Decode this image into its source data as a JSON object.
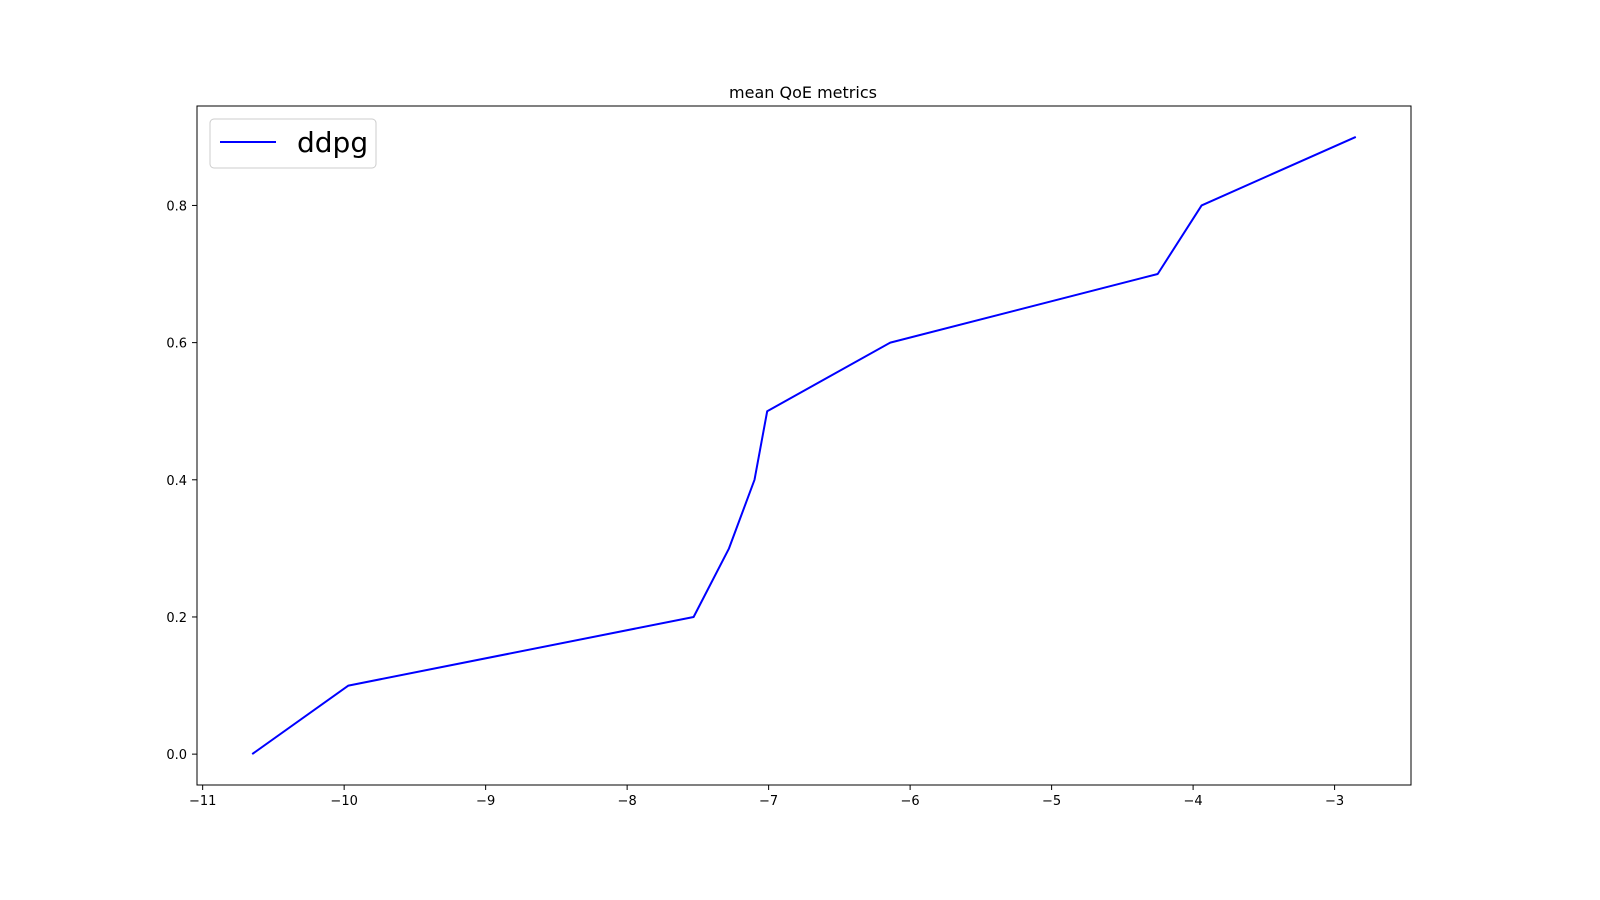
{
  "chart_data": {
    "type": "line",
    "title": "mean QoE metrics",
    "xlabel": "",
    "ylabel": "",
    "xlim": [
      -11.04,
      -2.46
    ],
    "ylim": [
      -0.045,
      0.945
    ],
    "x_ticks": [
      -11,
      -10,
      -9,
      -8,
      -7,
      -6,
      -5,
      -4,
      -3
    ],
    "x_tick_labels": [
      "−11",
      "−10",
      "−9",
      "−8",
      "−7",
      "−6",
      "−5",
      "−4",
      "−3"
    ],
    "y_ticks": [
      0.0,
      0.2,
      0.4,
      0.6,
      0.8
    ],
    "y_tick_labels": [
      "0.0",
      "0.2",
      "0.4",
      "0.6",
      "0.8"
    ],
    "grid": false,
    "legend_position": "top-left",
    "series": [
      {
        "name": "ddpg",
        "color": "#0000ff",
        "x": [
          -10.65,
          -9.97,
          -7.53,
          -7.28,
          -7.1,
          -7.01,
          -6.14,
          -4.25,
          -3.94,
          -2.85
        ],
        "y": [
          0.0,
          0.1,
          0.2,
          0.3,
          0.4,
          0.5,
          0.6,
          0.7,
          0.8,
          0.9
        ]
      }
    ]
  }
}
